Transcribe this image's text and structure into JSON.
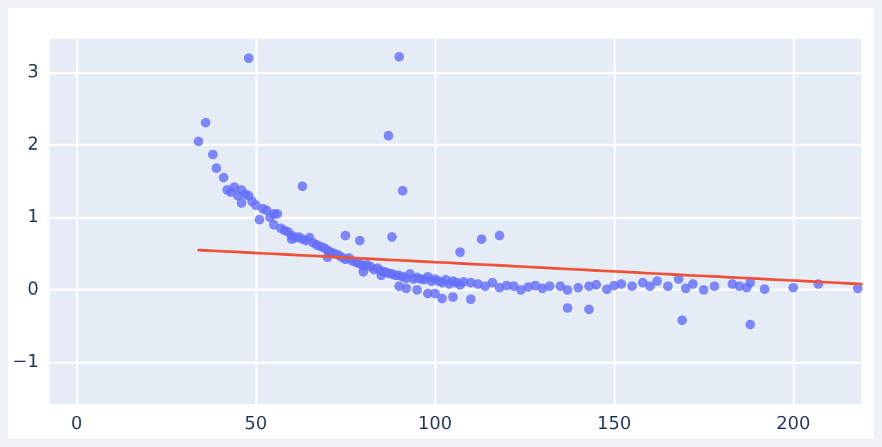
{
  "chart_data": {
    "type": "scatter",
    "xlim": [
      -7.5,
      219
    ],
    "ylim": [
      -1.58,
      3.47
    ],
    "xticks": [
      0,
      50,
      100,
      150,
      200
    ],
    "yticks": [
      -1,
      0,
      1,
      2,
      3
    ],
    "grid": true,
    "series": [
      {
        "marker": "circle",
        "color": "#636efa",
        "x": [
          34,
          36,
          38,
          39,
          41,
          42,
          43,
          44,
          45,
          46,
          46,
          47,
          48,
          49,
          50,
          51,
          52,
          53,
          54,
          55,
          55,
          56,
          57,
          58,
          59,
          60,
          61,
          62,
          63,
          64,
          65,
          66,
          67,
          68,
          69,
          70,
          71,
          72,
          73,
          74,
          75,
          76,
          77,
          78,
          79,
          80,
          81,
          82,
          83,
          84,
          85,
          86,
          87,
          88,
          89,
          90,
          91,
          92,
          93,
          94,
          95,
          96,
          97,
          98,
          99,
          100,
          101,
          102,
          103,
          104,
          105,
          106,
          107,
          108,
          110,
          112,
          114,
          116,
          118,
          120,
          122,
          124,
          126,
          128,
          130,
          132,
          135,
          137,
          140,
          143,
          145,
          148,
          150,
          152,
          155,
          158,
          160,
          162,
          165,
          168,
          170,
          172,
          175,
          178,
          183,
          185,
          187,
          188,
          192,
          200,
          207,
          218,
          48,
          90,
          87,
          91,
          63,
          75,
          79,
          88,
          107,
          113,
          118,
          169,
          60,
          70,
          80,
          90,
          95,
          100,
          105,
          98,
          92,
          85,
          102,
          110
        ],
        "values": [
          2.05,
          2.31,
          1.87,
          1.68,
          1.55,
          1.38,
          1.35,
          1.42,
          1.3,
          1.2,
          1.38,
          1.32,
          1.3,
          1.22,
          1.17,
          0.97,
          1.12,
          1.1,
          1.0,
          1.05,
          0.9,
          1.05,
          0.85,
          0.82,
          0.8,
          0.75,
          0.72,
          0.73,
          0.7,
          0.68,
          0.72,
          0.65,
          0.62,
          0.6,
          0.58,
          0.55,
          0.52,
          0.5,
          0.48,
          0.45,
          0.42,
          0.44,
          0.4,
          0.38,
          0.36,
          0.33,
          0.35,
          0.32,
          0.28,
          0.3,
          0.26,
          0.25,
          0.23,
          0.22,
          0.2,
          0.2,
          0.18,
          0.16,
          0.22,
          0.15,
          0.17,
          0.15,
          0.14,
          0.18,
          0.12,
          0.15,
          0.12,
          0.1,
          0.14,
          0.08,
          0.12,
          0.1,
          0.07,
          0.11,
          0.1,
          0.08,
          0.05,
          0.1,
          0.03,
          0.06,
          0.05,
          0.0,
          0.04,
          0.06,
          0.02,
          0.05,
          0.05,
          0.0,
          0.03,
          0.05,
          0.07,
          0.01,
          0.06,
          0.08,
          0.05,
          0.1,
          0.05,
          0.12,
          0.05,
          0.15,
          0.02,
          0.08,
          0.0,
          0.05,
          0.08,
          0.05,
          0.03,
          0.1,
          0.01,
          0.03,
          0.08,
          0.02,
          3.2,
          3.22,
          2.13,
          1.37,
          1.43,
          0.75,
          0.68,
          0.73,
          0.52,
          0.7,
          0.75,
          -0.42,
          0.7,
          0.45,
          0.25,
          0.05,
          0.0,
          -0.05,
          -0.1,
          -0.05,
          0.02,
          0.2,
          -0.12,
          -0.13
        ]
      },
      {
        "type": "line",
        "marker": "none",
        "line_style": "solid",
        "color": "#ef553b",
        "x": [
          34,
          219
        ],
        "values": [
          0.55,
          0.08
        ]
      },
      {
        "marker": "circle",
        "color": "#636efa",
        "x": [
          137,
          143,
          188
        ],
        "values": [
          -0.25,
          -0.27,
          -0.48
        ]
      }
    ]
  }
}
